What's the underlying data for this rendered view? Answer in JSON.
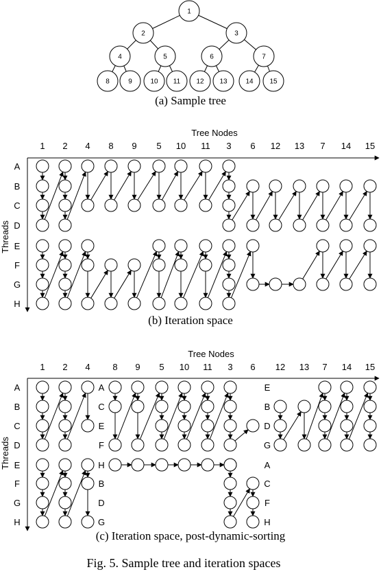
{
  "tree": {
    "caption": "(a)  Sample tree",
    "nodes": [
      "1",
      "2",
      "3",
      "4",
      "5",
      "6",
      "7",
      "8",
      "9",
      "10",
      "11",
      "12",
      "13",
      "14",
      "15"
    ]
  },
  "iteration_space": {
    "caption": "(b)  Iteration space",
    "axis_title": "Tree Nodes",
    "y_title": "Threads",
    "columns": [
      "1",
      "2",
      "4",
      "8",
      "9",
      "5",
      "10",
      "11",
      "3",
      "6",
      "12",
      "13",
      "7",
      "14",
      "15"
    ],
    "threads": [
      "A",
      "B",
      "C",
      "D",
      "E",
      "F",
      "G",
      "H"
    ]
  },
  "sorted_space": {
    "caption": "(c)  Iteration space, post-dynamic-sorting",
    "axis_title": "Tree Nodes",
    "y_title": "Threads",
    "columns": [
      "1",
      "2",
      "4",
      "8",
      "9",
      "5",
      "10",
      "11",
      "3",
      "6",
      "12",
      "13",
      "7",
      "14",
      "15"
    ],
    "threads": [
      "A",
      "B",
      "C",
      "D",
      "E",
      "F",
      "G",
      "H"
    ],
    "group_labels_8": [
      "A",
      "C",
      "E",
      "F",
      "H",
      "B",
      "D",
      "G"
    ],
    "group_labels_12": [
      "E",
      "B",
      "D",
      "G"
    ],
    "group_labels_6": [
      "A",
      "C",
      "F",
      "H"
    ]
  },
  "figure_caption": "Fig. 5.    Sample tree and iteration spaces"
}
